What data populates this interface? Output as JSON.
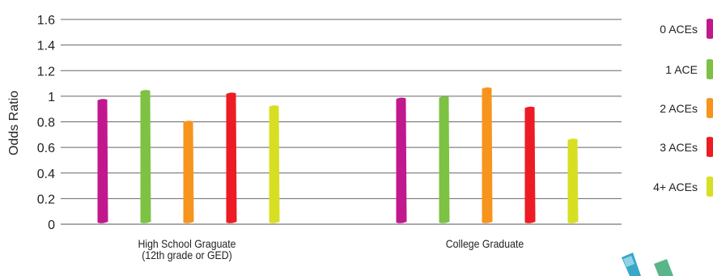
{
  "chart_data": {
    "type": "bar",
    "ylabel": "Odds Ratio",
    "ylim": [
      0,
      1.6
    ],
    "yticks": [
      "0",
      "0.2",
      "0.4",
      "0.6",
      "0.8",
      "1",
      "1.2",
      "1.4",
      "1.6"
    ],
    "categories": [
      [
        "High School Graguate",
        "(12th grade or GED)"
      ],
      [
        "College Graduate"
      ]
    ],
    "series": [
      {
        "name": "0 ACEs",
        "color": "#c2188e",
        "values": [
          0.98,
          0.99
        ]
      },
      {
        "name": "1 ACE",
        "color": "#7dc242",
        "values": [
          1.05,
          1.0
        ]
      },
      {
        "name": "2 ACEs",
        "color": "#f7941d",
        "values": [
          0.81,
          1.07
        ]
      },
      {
        "name": "3 ACEs",
        "color": "#ed1c24",
        "values": [
          1.03,
          0.92
        ]
      },
      {
        "name": "4+ ACEs",
        "color": "#d7df23",
        "values": [
          0.93,
          0.67
        ]
      }
    ],
    "legend": "right",
    "grid": true
  }
}
